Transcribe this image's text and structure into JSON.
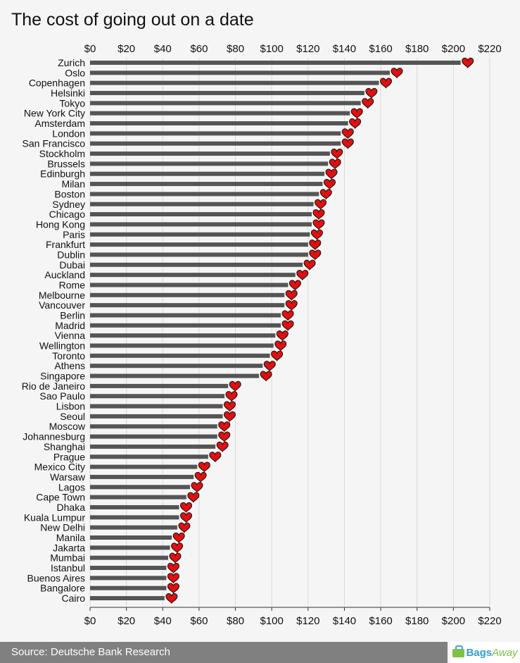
{
  "title": "The cost of going out on a date",
  "footer": {
    "source": "Source: Deutsche Bank Research",
    "logo_main": "Bags",
    "logo_accent": "Away"
  },
  "colors": {
    "bar": "#555555",
    "heart": "#e01010",
    "grid": "#d9d9d9"
  },
  "chart_data": {
    "type": "bar",
    "orientation": "horizontal",
    "title": "The cost of going out on a date",
    "xlabel": "",
    "ylabel": "",
    "xlim": [
      0,
      220
    ],
    "grid": true,
    "ticks": [
      0,
      20,
      40,
      60,
      80,
      100,
      120,
      140,
      160,
      180,
      200,
      220
    ],
    "tick_labels": [
      "$0",
      "$20",
      "$40",
      "$60",
      "$80",
      "$100",
      "$120",
      "$140",
      "$160",
      "$180",
      "$200",
      "$220"
    ],
    "categories": [
      "Zurich",
      "Oslo",
      "Copenhagen",
      "Helsinki",
      "Tokyo",
      "New York City",
      "Amsterdam",
      "London",
      "San Francisco",
      "Stockholm",
      "Brussels",
      "Edinburgh",
      "Milan",
      "Boston",
      "Sydney",
      "Chicago",
      "Hong Kong",
      "Paris",
      "Frankfurt",
      "Dublin",
      "Dubai",
      "Auckland",
      "Rome",
      "Melbourne",
      "Vancouver",
      "Berlin",
      "Madrid",
      "Vienna",
      "Wellington",
      "Toronto",
      "Athens",
      "Singapore",
      "Rio de Janeiro",
      "Sao Paulo",
      "Lisbon",
      "Seoul",
      "Moscow",
      "Johannesburg",
      "Shanghai",
      "Prague",
      "Mexico City",
      "Warsaw",
      "Lagos",
      "Cape Town",
      "Dhaka",
      "Kuala Lumpur",
      "New Delhi",
      "Manila",
      "Jakarta",
      "Mumbai",
      "Istanbul",
      "Buenos Aires",
      "Bangalore",
      "Cairo"
    ],
    "values": [
      204,
      165,
      159,
      151,
      149,
      143,
      142,
      138,
      138,
      132,
      131,
      129,
      128,
      126,
      123,
      122,
      122,
      121,
      120,
      120,
      117,
      113,
      109,
      107,
      107,
      105,
      105,
      102,
      101,
      99,
      95,
      93,
      76,
      74,
      73,
      73,
      70,
      70,
      69,
      65,
      59,
      57,
      55,
      53,
      49,
      49,
      48,
      45,
      44,
      43,
      42,
      42,
      42,
      41
    ]
  }
}
